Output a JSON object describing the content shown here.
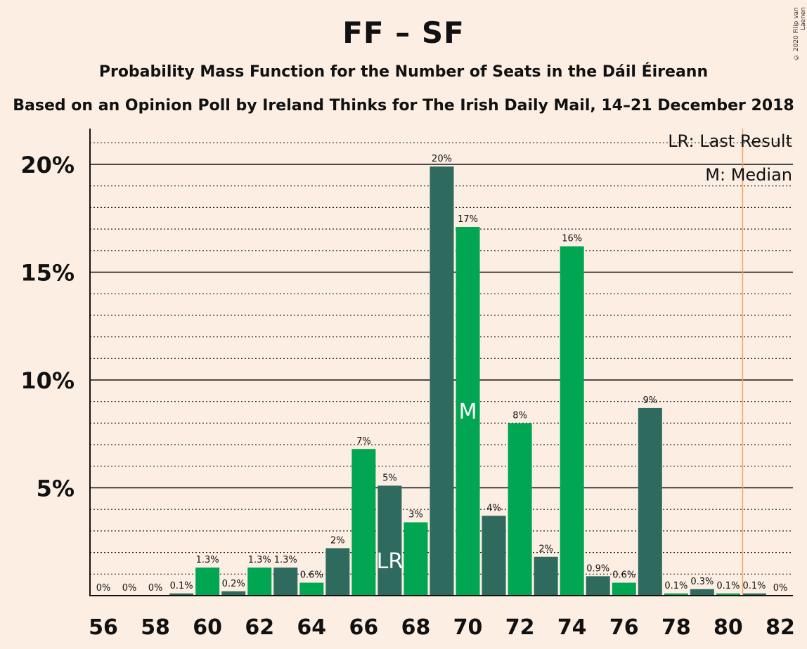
{
  "title": "FF – SF",
  "subtitle": "Probability Mass Function for the Number of Seats in the Dáil Éireann",
  "source": "Based on an Opinion Poll by Ireland Thinks for The Irish Daily Mail, 14–21 December 2018",
  "copyright": "© 2020 Filip van Laenen",
  "legend": {
    "lr": "LR: Last Result",
    "m": "M: Median"
  },
  "colors": {
    "dark": "#2e6b5e",
    "green": "#00a651",
    "background": "#fdeee3",
    "last_result_line": "#f4a460"
  },
  "chart_data": {
    "type": "bar",
    "x": [
      56,
      57,
      58,
      59,
      60,
      61,
      62,
      63,
      64,
      65,
      66,
      67,
      68,
      69,
      70,
      71,
      72,
      73,
      74,
      75,
      76,
      77,
      78,
      79,
      80,
      81,
      82
    ],
    "values": [
      0,
      0,
      0,
      0.1,
      1.3,
      0.2,
      1.3,
      1.3,
      0.6,
      2.2,
      6.8,
      5.1,
      3.4,
      19.9,
      17.1,
      3.7,
      8.0,
      1.8,
      16.2,
      0.9,
      0.6,
      8.7,
      0.1,
      0.3,
      0.1,
      0.1,
      0
    ],
    "labels": [
      "0%",
      "0%",
      "0%",
      "0.1%",
      "1.3%",
      "0.2%",
      "1.3%",
      "1.3%",
      "0.6%",
      "2%",
      "7%",
      "5%",
      "3%",
      "20%",
      "17%",
      "4%",
      "8%",
      "2%",
      "16%",
      "0.9%",
      "0.6%",
      "9%",
      "0.1%",
      "0.3%",
      "0.1%",
      "0.1%",
      "0%"
    ],
    "xticks": [
      56,
      58,
      60,
      62,
      64,
      66,
      68,
      70,
      72,
      74,
      76,
      78,
      80,
      82
    ],
    "ylim": [
      0,
      21.5
    ],
    "yticks": [
      {
        "value": 5,
        "label": "5%"
      },
      {
        "value": 10,
        "label": "10%"
      },
      {
        "value": 15,
        "label": "15%"
      },
      {
        "value": 20,
        "label": "20%"
      }
    ],
    "grid_minor_step": 1,
    "last_result": 67,
    "last_result_marker": "LR",
    "median": 70,
    "median_marker": "M",
    "majority_line": 80.5,
    "legend_position": "top-right"
  }
}
